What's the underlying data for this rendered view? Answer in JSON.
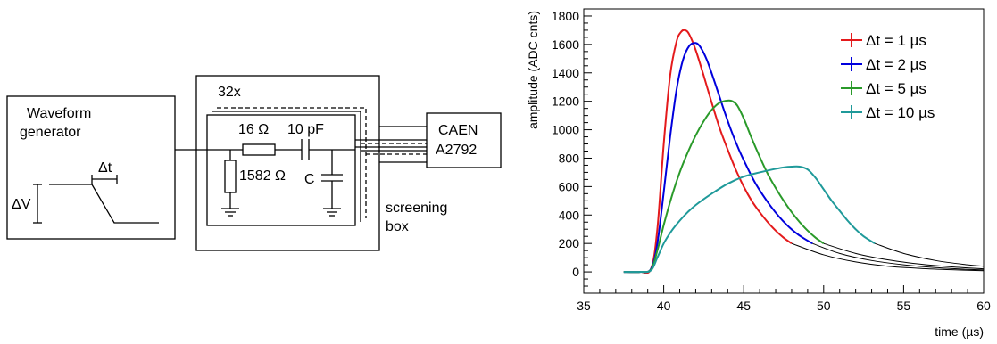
{
  "circuit": {
    "generator_title_line1": "Waveform",
    "generator_title_line2": "generator",
    "delta_t": "Δt",
    "delta_v": "ΔV",
    "channels": "32x",
    "r1": "16 Ω",
    "cap1": "10 pF",
    "r2": "1582 Ω",
    "cap2": "C",
    "digitizer_line1": "CAEN",
    "digitizer_line2": "A2792",
    "screening_line1": "screening",
    "screening_line2": "box"
  },
  "chart_data": {
    "type": "line",
    "title": "",
    "xlabel": "time (µs)",
    "ylabel": "amplitude (ADC cnts)",
    "xlim": [
      35,
      60
    ],
    "ylim": [
      -150,
      1850
    ],
    "xticks": [
      35,
      40,
      45,
      50,
      55,
      60
    ],
    "yticks": [
      0,
      200,
      400,
      600,
      800,
      1000,
      1200,
      1400,
      1600,
      1800
    ],
    "legend_position": "top-right",
    "grid": false,
    "series": [
      {
        "name": "Δt = 1 µs",
        "color": "#e41a1c",
        "x": [
          37.5,
          38.5,
          39.2,
          39.6,
          40.0,
          40.4,
          40.8,
          41.1,
          41.35,
          41.6,
          42.0,
          42.5,
          43.0,
          43.5,
          44.0,
          44.5,
          45.0,
          45.5,
          46.0,
          46.5,
          47.0,
          47.5,
          48.0
        ],
        "y": [
          0,
          0,
          20,
          300,
          900,
          1380,
          1620,
          1690,
          1700,
          1670,
          1560,
          1380,
          1190,
          1010,
          860,
          720,
          600,
          500,
          420,
          350,
          290,
          240,
          200
        ]
      },
      {
        "name": "Δt = 2 µs",
        "color": "#0000dd",
        "x": [
          37.5,
          38.5,
          39.2,
          39.6,
          40.0,
          40.4,
          40.8,
          41.2,
          41.6,
          42.0,
          42.3,
          42.7,
          43.2,
          43.7,
          44.2,
          44.7,
          45.2,
          45.7,
          46.2,
          46.7,
          47.2,
          47.7,
          48.2,
          48.7,
          49.3
        ],
        "y": [
          0,
          0,
          20,
          200,
          560,
          950,
          1280,
          1490,
          1590,
          1610,
          1580,
          1490,
          1330,
          1160,
          1000,
          860,
          740,
          630,
          540,
          460,
          390,
          330,
          280,
          240,
          200
        ]
      },
      {
        "name": "Δt = 5 µs",
        "color": "#2a9a2a",
        "x": [
          37.5,
          38.5,
          39.2,
          39.6,
          40.0,
          40.5,
          41.0,
          41.5,
          42.0,
          42.5,
          43.0,
          43.5,
          44.0,
          44.3,
          44.6,
          45.0,
          45.5,
          46.0,
          46.5,
          47.0,
          47.5,
          48.0,
          48.5,
          49.0,
          49.5,
          50.0
        ],
        "y": [
          0,
          0,
          15,
          150,
          330,
          530,
          700,
          840,
          960,
          1060,
          1140,
          1190,
          1205,
          1200,
          1170,
          1080,
          940,
          810,
          690,
          590,
          500,
          420,
          350,
          290,
          240,
          200
        ]
      },
      {
        "name": "Δt = 10 µs",
        "color": "#1f9a9a",
        "x": [
          37.5,
          38.5,
          39.2,
          39.6,
          40.0,
          40.5,
          41.0,
          41.5,
          42.0,
          43.0,
          44.0,
          45.0,
          46.0,
          47.0,
          47.5,
          48.0,
          48.5,
          49.0,
          49.5,
          50.0,
          50.5,
          51.0,
          51.5,
          52.0,
          52.5,
          53.2
        ],
        "y": [
          0,
          0,
          10,
          100,
          200,
          290,
          360,
          420,
          470,
          550,
          620,
          670,
          700,
          725,
          735,
          740,
          740,
          720,
          660,
          580,
          500,
          430,
          360,
          300,
          250,
          200
        ]
      }
    ],
    "tails": [
      {
        "color": "#000000",
        "x": [
          48.0,
          50,
          52,
          54,
          56,
          58,
          60
        ],
        "y": [
          200,
          120,
          70,
          40,
          25,
          15,
          8
        ]
      },
      {
        "color": "#000000",
        "x": [
          49.3,
          51,
          53,
          55,
          57,
          59,
          60
        ],
        "y": [
          200,
          130,
          80,
          50,
          30,
          18,
          14
        ]
      },
      {
        "color": "#000000",
        "x": [
          50.0,
          52,
          54,
          56,
          58,
          60
        ],
        "y": [
          200,
          130,
          85,
          55,
          35,
          22
        ]
      },
      {
        "color": "#000000",
        "x": [
          53.2,
          55,
          57,
          59,
          60
        ],
        "y": [
          200,
          130,
          80,
          50,
          40
        ]
      }
    ]
  }
}
